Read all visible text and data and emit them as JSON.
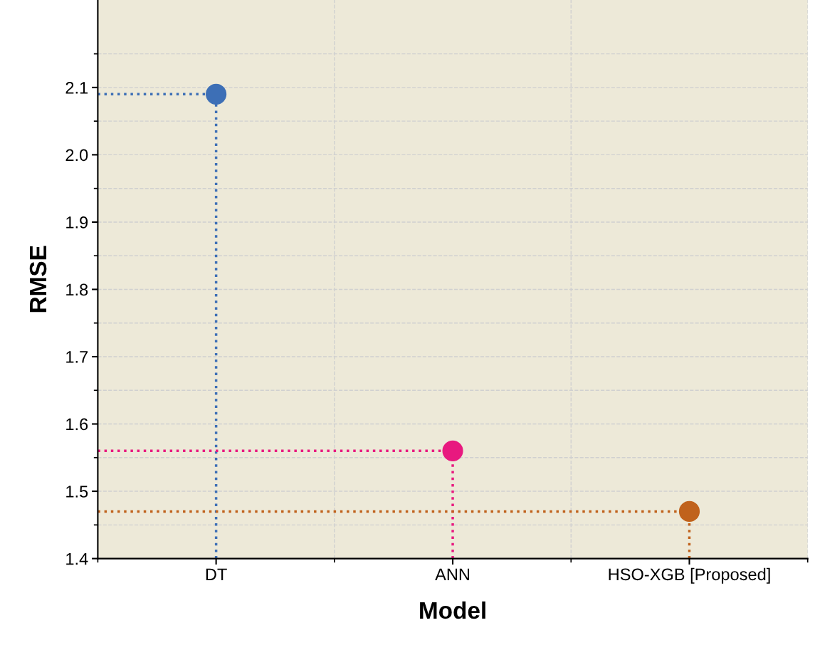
{
  "chart_data": {
    "type": "lollipop",
    "xlabel": "Model",
    "ylabel": "RMSE",
    "categories": [
      "DT",
      "ANN",
      "HSO-XGB [Proposed]"
    ],
    "values": [
      2.09,
      1.56,
      1.47
    ],
    "colors": [
      "#3d6fb6",
      "#e8197f",
      "#c0621c"
    ],
    "ylim": [
      1.4,
      2.23
    ],
    "yticks": [
      1.4,
      1.5,
      1.6,
      1.7,
      1.8,
      1.9,
      {
        "value": 2.0,
        "label": "2.0"
      },
      2.1
    ],
    "ref_lines": [
      {
        "axis": "y",
        "value": 2.09,
        "color": "#3d6fb6",
        "line_style": "dotted"
      },
      {
        "axis": "y",
        "value": 1.56,
        "color": "#e8197f",
        "line_style": "dotted"
      },
      {
        "axis": "y",
        "value": 1.47,
        "color": "#c0621c",
        "line_style": "dotted"
      }
    ],
    "grid": true,
    "marker": "circle",
    "line_style": "dotted"
  }
}
